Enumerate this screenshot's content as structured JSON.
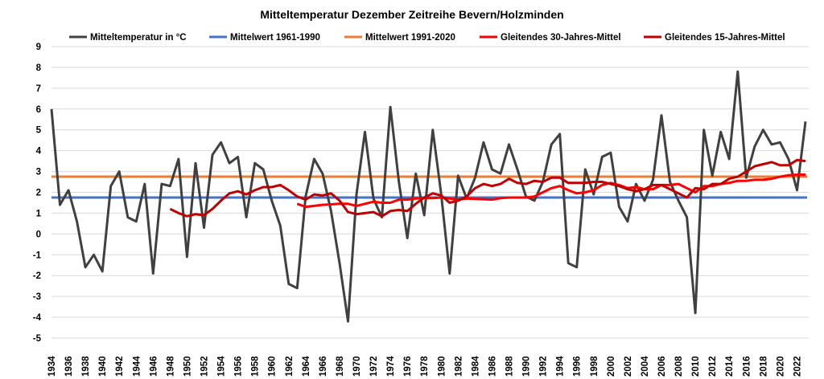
{
  "chart_data": {
    "type": "line",
    "title": "Mitteltemperatur Dezember Zeitreihe Bevern/Holzminden",
    "xlabel": "",
    "ylabel": "",
    "ylim": [
      -5,
      9
    ],
    "xlim": [
      1934,
      2023
    ],
    "yticks": [
      "9",
      "8",
      "7",
      "6",
      "5",
      "4",
      "3",
      "2",
      "1",
      "0",
      "-1",
      "-2",
      "-3",
      "-4",
      "-5"
    ],
    "grid": true,
    "legend_position": "top",
    "series": [
      {
        "name": "Mitteltemperatur in °C",
        "color": "#404040",
        "start_year": 1934,
        "values": [
          6.0,
          1.4,
          2.1,
          0.6,
          -1.6,
          -1.0,
          -1.8,
          2.3,
          3.0,
          0.8,
          0.6,
          2.4,
          -1.9,
          2.4,
          2.3,
          3.6,
          -1.1,
          3.4,
          0.3,
          3.8,
          4.4,
          3.4,
          3.7,
          0.8,
          3.4,
          3.1,
          1.6,
          0.4,
          -2.4,
          -2.6,
          1.8,
          3.6,
          2.9,
          1.1,
          -1.4,
          -4.2,
          1.9,
          4.9,
          1.7,
          0.8,
          6.1,
          2.5,
          -0.2,
          2.9,
          0.9,
          5.0,
          1.9,
          -1.9,
          2.8,
          1.7,
          2.7,
          4.4,
          3.1,
          2.9,
          4.3,
          3.1,
          1.8,
          1.6,
          2.5,
          4.3,
          4.8,
          -1.4,
          -1.6,
          3.1,
          1.9,
          3.7,
          3.9,
          1.3,
          0.6,
          2.4,
          1.6,
          2.6,
          5.7,
          2.5,
          1.6,
          0.8,
          -3.8,
          5.0,
          2.8,
          4.9,
          3.6,
          7.8,
          2.7,
          4.2,
          5.0,
          4.3,
          4.4,
          3.6,
          2.1,
          5.4
        ]
      },
      {
        "name": "Mittelwert 1961-1990",
        "color": "#4472c4",
        "constant": 1.75
      },
      {
        "name": "Mittelwert 1991-2020",
        "color": "#ed7d31",
        "constant": 2.75
      },
      {
        "name": "Gleitendes 30-Jahres-Mittel",
        "color": "#ff0000",
        "start_year": 1963,
        "values": [
          1.45,
          1.3,
          1.35,
          1.4,
          1.42,
          1.45,
          1.45,
          1.35,
          1.45,
          1.55,
          1.5,
          1.5,
          1.65,
          1.65,
          1.7,
          1.72,
          1.72,
          1.75,
          1.7,
          1.65,
          1.7,
          1.68,
          1.67,
          1.65,
          1.72,
          1.75,
          1.75,
          1.75,
          1.8,
          2.0,
          2.2,
          2.3,
          2.1,
          1.95,
          2.0,
          2.1,
          2.35,
          2.45,
          2.35,
          2.2,
          2.25,
          2.15,
          2.15,
          2.35,
          2.35,
          2.4,
          2.2,
          2.0,
          2.3,
          2.3,
          2.4,
          2.45,
          2.55,
          2.55,
          2.6,
          2.6,
          2.65,
          2.75,
          2.82,
          2.85,
          2.85
        ]
      },
      {
        "name": "Gleitendes 15-Jahres-Mittel",
        "color": "#c00000",
        "start_year": 1948,
        "values": [
          1.2,
          1.0,
          0.85,
          0.95,
          0.9,
          1.2,
          1.6,
          1.95,
          2.05,
          1.9,
          2.1,
          2.25,
          2.25,
          2.35,
          2.1,
          1.8,
          1.65,
          1.9,
          1.85,
          1.95,
          1.6,
          1.05,
          0.95,
          1.0,
          1.05,
          0.85,
          1.1,
          1.15,
          1.1,
          1.45,
          1.75,
          1.95,
          1.85,
          1.5,
          1.6,
          1.8,
          2.2,
          2.4,
          2.3,
          2.4,
          2.65,
          2.45,
          2.4,
          2.55,
          2.5,
          2.7,
          2.7,
          2.45,
          2.45,
          2.45,
          2.5,
          2.5,
          2.4,
          2.3,
          2.15,
          2.05,
          2.15,
          2.35,
          2.35,
          2.15,
          1.95,
          1.75,
          2.2,
          2.15,
          2.4,
          2.4,
          2.65,
          2.75,
          3.0,
          3.25,
          3.35,
          3.45,
          3.3,
          3.3,
          3.55,
          3.5
        ]
      }
    ],
    "xticks": [
      "1934",
      "1936",
      "1938",
      "1940",
      "1942",
      "1944",
      "1946",
      "1948",
      "1950",
      "1952",
      "1954",
      "1956",
      "1958",
      "1960",
      "1962",
      "1964",
      "1966",
      "1968",
      "1970",
      "1972",
      "1974",
      "1976",
      "1978",
      "1980",
      "1982",
      "1984",
      "1986",
      "1988",
      "1990",
      "1992",
      "1994",
      "1996",
      "1998",
      "2000",
      "2002",
      "2004",
      "2006",
      "2008",
      "2010",
      "2012",
      "2014",
      "2016",
      "2018",
      "2020",
      "2022"
    ]
  }
}
